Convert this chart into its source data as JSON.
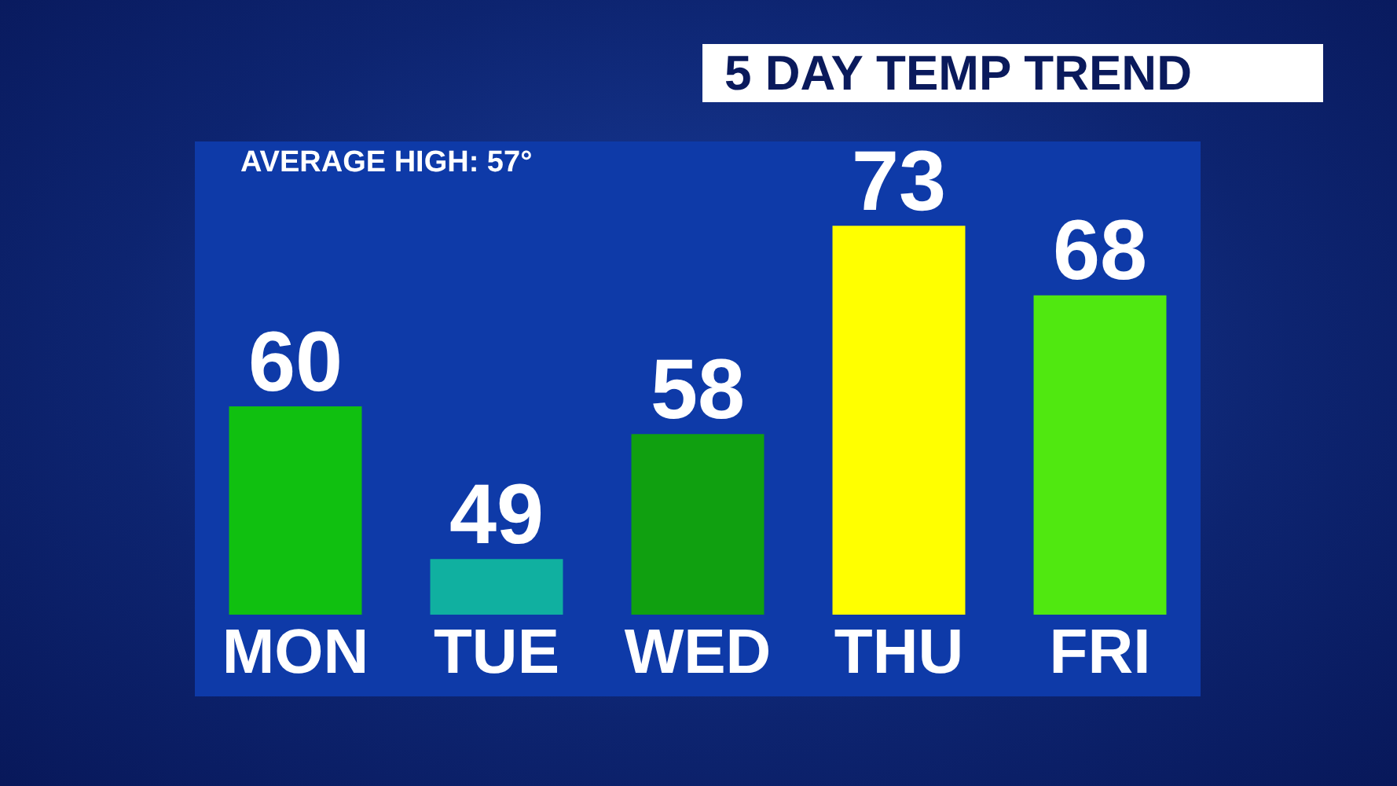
{
  "chart_data": {
    "type": "bar",
    "title": "5 DAY TEMP TREND",
    "annotations": [
      "AVERAGE HIGH: 57°"
    ],
    "categories": [
      "MON",
      "TUE",
      "WED",
      "THU",
      "FRI"
    ],
    "values": [
      60,
      49,
      58,
      73,
      68
    ],
    "colors": [
      "#10c010",
      "#10b0a0",
      "#10a010",
      "#ffff00",
      "#50e810"
    ],
    "data_labels": true,
    "grid": false,
    "legend": false,
    "tick_labels": "x"
  }
}
